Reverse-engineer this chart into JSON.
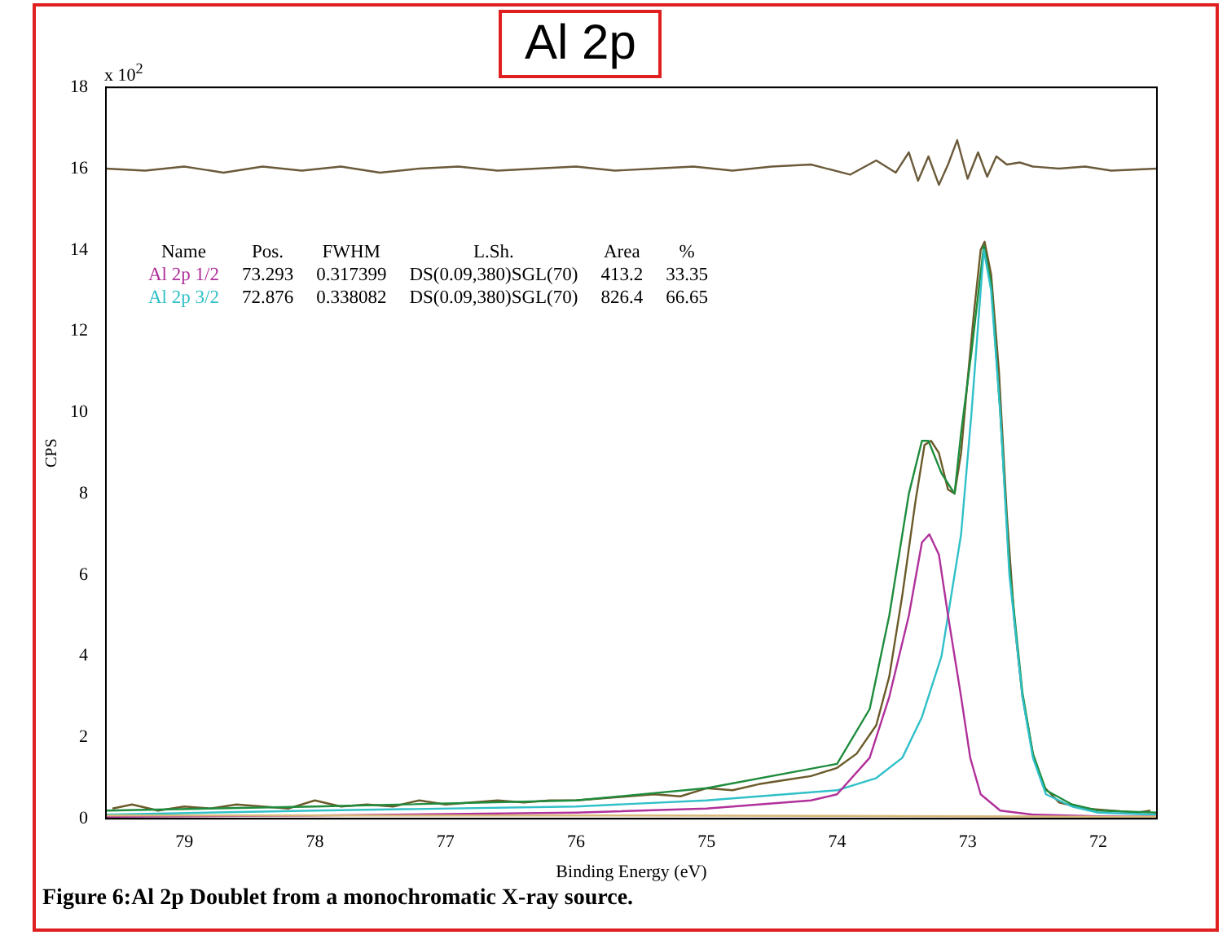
{
  "chart_data": {
    "type": "line",
    "title": "Al 2p",
    "xlabel": "Binding Energy (eV)",
    "ylabel": "CPS",
    "xlim": [
      79.6,
      71.55
    ],
    "xticks": [
      79,
      78,
      77,
      76,
      75,
      74,
      73,
      72
    ],
    "ylim": [
      0,
      18
    ],
    "yticks": [
      0,
      2,
      4,
      6,
      8,
      10,
      12,
      14,
      16,
      18
    ],
    "grid": false,
    "legend": false,
    "annotations": [
      "x 10$^{2}$",
      "Name",
      "Pos.",
      "FWHM",
      "L.Sh.",
      "Area",
      "%",
      "73.293",
      "0.317399",
      "DS(0.09,380)SGL(70)",
      "413.2",
      "33.35",
      "72.876",
      "0.338082",
      "DS(0.09,380)SGL(70)",
      "826.4",
      "66.65",
      "Figure 6:Al 2p Doublet from a monochromatic X-ray source."
    ],
    "series": [
      {
        "color": "#d8b878",
        "x": [
          79.6,
          76,
          74,
          73,
          72,
          71.55
        ],
        "values": [
          0.08,
          0.08,
          0.07,
          0.06,
          0.05,
          0.05
        ]
      },
      {
        "name": "Al 2p 1/2",
        "color": "#b0309a",
        "x": [
          79.6,
          78,
          76,
          75,
          74.2,
          74,
          73.75,
          73.6,
          73.45,
          73.35,
          73.293,
          73.22,
          73.15,
          73.05,
          72.98,
          72.9,
          72.75,
          72.5,
          72,
          71.55
        ],
        "values": [
          0.05,
          0.08,
          0.15,
          0.25,
          0.45,
          0.6,
          1.5,
          3,
          5,
          6.8,
          7.0,
          6.5,
          5,
          3,
          1.5,
          0.6,
          0.2,
          0.1,
          0.06,
          0.05
        ]
      },
      {
        "name": "Al 2p 3/2",
        "color": "#30c0c8",
        "x": [
          79.6,
          78,
          76,
          75,
          74,
          73.7,
          73.5,
          73.35,
          73.2,
          73.05,
          72.97,
          72.9,
          72.876,
          72.82,
          72.75,
          72.68,
          72.58,
          72.5,
          72.4,
          72.2,
          72,
          71.55
        ],
        "values": [
          0.1,
          0.2,
          0.3,
          0.45,
          0.7,
          1.0,
          1.5,
          2.5,
          4,
          7,
          10,
          13,
          14,
          13,
          10,
          6,
          3,
          1.5,
          0.6,
          0.3,
          0.15,
          0.1
        ]
      },
      {
        "color": "#1e8c3c",
        "x": [
          79.6,
          78,
          76,
          75,
          74,
          73.75,
          73.6,
          73.45,
          73.35,
          73.3,
          73.2,
          73.1,
          73.05,
          72.97,
          72.876,
          72.82,
          72.75,
          72.68,
          72.58,
          72.5,
          72.4,
          72.2,
          72,
          71.55
        ],
        "values": [
          0.2,
          0.3,
          0.45,
          0.75,
          1.35,
          2.7,
          5,
          8,
          9.3,
          9.3,
          8.5,
          8.0,
          9.5,
          11.5,
          14.1,
          13.2,
          10,
          6.2,
          3.1,
          1.6,
          0.7,
          0.35,
          0.2,
          0.15
        ]
      },
      {
        "color": "#6b5a2a",
        "x": [
          79.55,
          79.4,
          79.2,
          79,
          78.8,
          78.6,
          78.4,
          78.2,
          78,
          77.8,
          77.6,
          77.4,
          77.2,
          77,
          76.8,
          76.6,
          76.4,
          76.2,
          76,
          75.8,
          75.6,
          75.4,
          75.2,
          75,
          74.8,
          74.6,
          74.4,
          74.2,
          74,
          73.85,
          73.7,
          73.6,
          73.5,
          73.4,
          73.33,
          73.28,
          73.22,
          73.15,
          73.1,
          73.05,
          73,
          72.95,
          72.9,
          72.87,
          72.82,
          72.76,
          72.7,
          72.64,
          72.58,
          72.5,
          72.42,
          72.3,
          72.1,
          71.9,
          71.7,
          71.6
        ],
        "values": [
          0.25,
          0.35,
          0.2,
          0.3,
          0.25,
          0.35,
          0.3,
          0.25,
          0.45,
          0.3,
          0.35,
          0.3,
          0.45,
          0.35,
          0.4,
          0.45,
          0.4,
          0.45,
          0.45,
          0.5,
          0.55,
          0.6,
          0.55,
          0.75,
          0.7,
          0.85,
          0.95,
          1.05,
          1.25,
          1.6,
          2.3,
          3.5,
          5.5,
          7.8,
          9.2,
          9.3,
          9.0,
          8.1,
          8.0,
          9.0,
          10.8,
          12.5,
          14.0,
          14.2,
          13.4,
          11.0,
          7.5,
          4.8,
          3.0,
          1.6,
          0.8,
          0.4,
          0.25,
          0.2,
          0.15,
          0.2
        ]
      },
      {
        "color": "#6b5a3a",
        "x": [
          79.6,
          79.3,
          79,
          78.7,
          78.4,
          78.1,
          77.8,
          77.5,
          77.2,
          76.9,
          76.6,
          76.3,
          76,
          75.7,
          75.4,
          75.1,
          74.8,
          74.5,
          74.2,
          73.9,
          73.7,
          73.55,
          73.45,
          73.38,
          73.3,
          73.22,
          73.15,
          73.08,
          73,
          72.92,
          72.85,
          72.78,
          72.7,
          72.6,
          72.5,
          72.3,
          72.1,
          71.9,
          71.55
        ],
        "values": [
          16.0,
          15.95,
          16.05,
          15.9,
          16.05,
          15.95,
          16.05,
          15.9,
          16.0,
          16.05,
          15.95,
          16.0,
          16.05,
          15.95,
          16.0,
          16.05,
          15.95,
          16.05,
          16.1,
          15.85,
          16.2,
          15.9,
          16.4,
          15.7,
          16.3,
          15.6,
          16.1,
          16.7,
          15.75,
          16.4,
          15.8,
          16.3,
          16.1,
          16.15,
          16.05,
          16.0,
          16.05,
          15.95,
          16.0
        ]
      }
    ]
  }
}
